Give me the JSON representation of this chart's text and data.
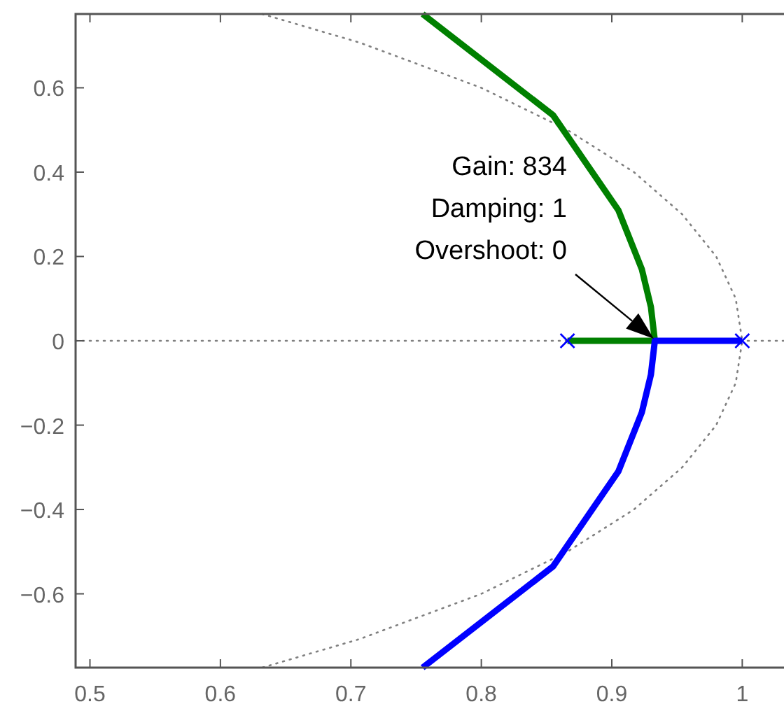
{
  "chart_data": {
    "type": "line",
    "xlim": [
      0.489,
      1.032
    ],
    "ylim": [
      -0.775,
      0.775
    ],
    "xticks": [
      {
        "value": 0.5,
        "label": "0.5"
      },
      {
        "value": 0.6,
        "label": "0.6"
      },
      {
        "value": 0.7,
        "label": "0.7"
      },
      {
        "value": 0.8,
        "label": "0.8"
      },
      {
        "value": 0.9,
        "label": "0.9"
      },
      1
    ],
    "yticks": [
      {
        "value": -0.6,
        "label": "−0.6"
      },
      {
        "value": -0.4,
        "label": "−0.4"
      },
      {
        "value": -0.2,
        "label": "−0.2"
      },
      0,
      {
        "value": 0.2,
        "label": "0.2"
      },
      {
        "value": 0.4,
        "label": "0.4"
      },
      {
        "value": 0.6,
        "label": "0.6"
      }
    ],
    "grid": false,
    "series": [
      {
        "color": "#808080",
        "line_style": "dotted",
        "x": [
          0.632,
          0.707,
          0.8,
          0.866,
          0.917,
          0.954,
          0.98,
          0.995,
          1,
          0.995,
          0.98,
          0.954,
          0.917,
          0.866,
          0.8,
          0.707,
          0.632
        ],
        "values": [
          0.775,
          0.707,
          0.6,
          0.5,
          0.4,
          0.3,
          0.2,
          0.1,
          0,
          -0.1,
          -0.2,
          -0.3,
          -0.4,
          -0.5,
          -0.6,
          -0.707,
          -0.775
        ]
      },
      {
        "color": "#008000",
        "line_style": "solid",
        "x": [
          0.866,
          0.933,
          0.933,
          0.93,
          0.923,
          0.905,
          0.855,
          0.755
        ],
        "values": [
          0,
          0,
          0,
          0.08,
          0.17,
          0.31,
          0.535,
          0.775
        ]
      },
      {
        "color": "#0000ff",
        "line_style": "solid",
        "x": [
          1,
          0.933,
          0.933,
          0.93,
          0.923,
          0.905,
          0.855,
          0.755
        ],
        "values": [
          0,
          0,
          0,
          -0.08,
          -0.17,
          -0.31,
          -0.535,
          -0.775
        ]
      },
      {
        "type": "scatter",
        "color": "#0000ff",
        "marker": "cross",
        "x": [
          0.866,
          1
        ],
        "values": [
          0,
          0
        ]
      }
    ],
    "ref_lines": [
      {
        "axis": "y",
        "value": 0,
        "color": "#808080",
        "line_style": "dotted"
      }
    ],
    "annotations": [
      "Gain: 834\nDamping: 1\nOvershoot: 0"
    ]
  }
}
